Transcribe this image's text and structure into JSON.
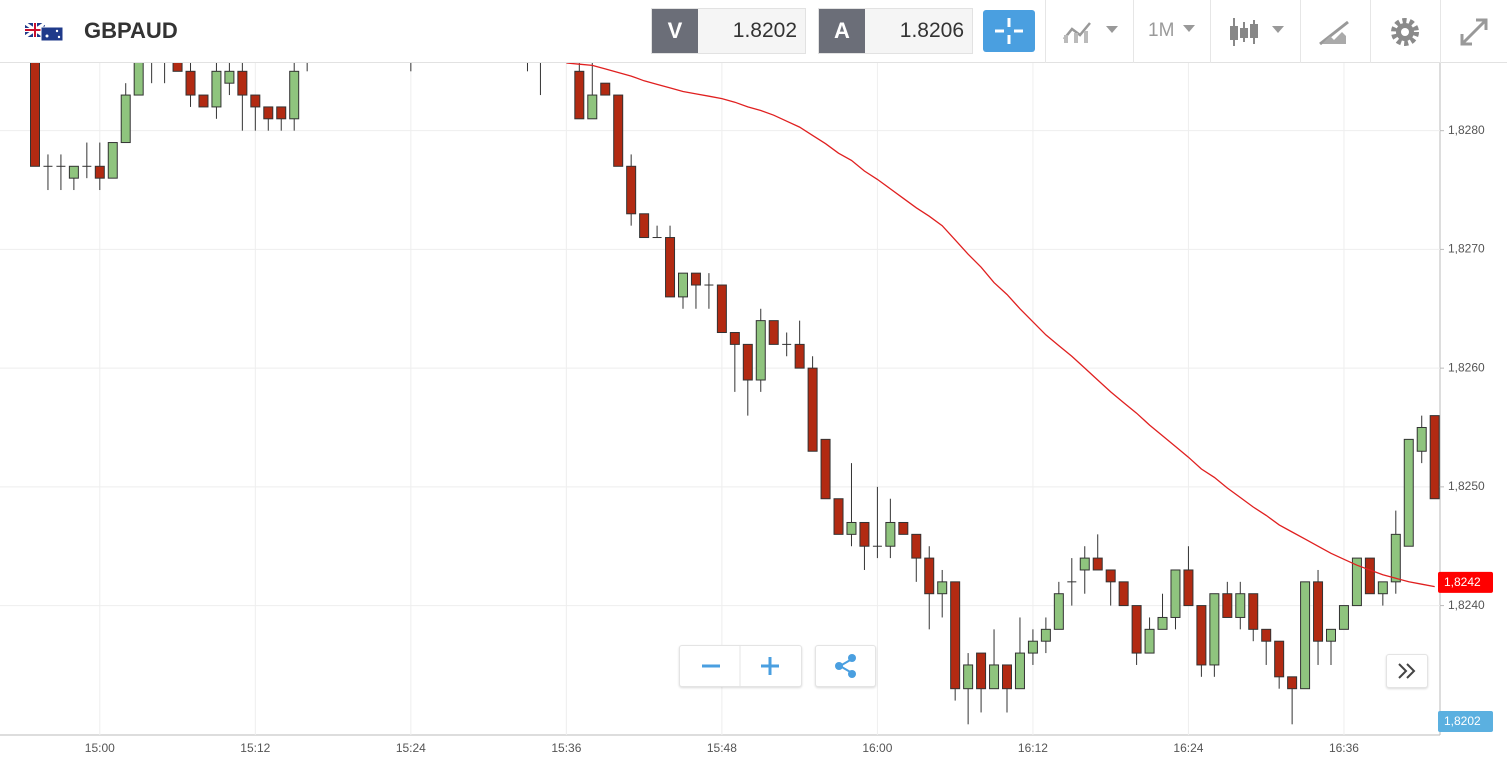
{
  "header": {
    "symbol": "GBPAUD",
    "sell_label": "V",
    "sell_price": "1.8202",
    "buy_label": "A",
    "buy_price": "1.8206",
    "timeframe": "1M"
  },
  "chart_data": {
    "type": "candlestick",
    "categories": [
      null,
      null,
      null,
      null,
      null,
      "15:00",
      null,
      null,
      null,
      null,
      null,
      null,
      null,
      null,
      null,
      null,
      null,
      "15:12",
      null,
      null,
      null,
      null,
      null,
      null,
      null,
      null,
      null,
      null,
      null,
      "15:24",
      null,
      null,
      null,
      null,
      null,
      null,
      null,
      null,
      null,
      null,
      null,
      "15:36",
      null,
      null,
      null,
      null,
      null,
      null,
      null,
      null,
      null,
      null,
      null,
      "15:48",
      null,
      null,
      null,
      null,
      null,
      null,
      null,
      null,
      null,
      null,
      null,
      "16:00",
      null,
      null,
      null,
      null,
      null,
      null,
      null,
      null,
      null,
      null,
      null,
      "16:12",
      null,
      null,
      null,
      null,
      null,
      null,
      null,
      null,
      null,
      null,
      null,
      "16:24",
      null,
      null,
      null,
      null,
      null,
      null,
      null,
      null,
      null,
      null,
      null,
      "16:36",
      null,
      null,
      null,
      null,
      null,
      null,
      null
    ],
    "open": [
      1.8286,
      1.8277,
      1.8277,
      1.8276,
      1.8277,
      1.8277,
      1.8276,
      1.8279,
      1.8283,
      1.8288,
      1.8288,
      1.8288,
      1.8285,
      1.8283,
      1.8282,
      1.8284,
      1.8285,
      1.8283,
      1.8282,
      1.8282,
      1.8281,
      1.8287,
      null,
      null,
      null,
      null,
      null,
      null,
      null,
      1.8287,
      null,
      null,
      null,
      null,
      null,
      null,
      null,
      null,
      1.8287,
      1.8287,
      null,
      null,
      1.8285,
      1.8281,
      1.8284,
      1.8283,
      1.8277,
      1.8273,
      1.8271,
      1.8271,
      1.8266,
      1.8268,
      1.8267,
      1.8267,
      1.8263,
      1.8262,
      1.8259,
      1.8264,
      1.8262,
      1.8262,
      1.826,
      1.8254,
      1.8249,
      1.8246,
      1.8247,
      1.8245,
      1.8245,
      1.8247,
      1.8246,
      1.8244,
      1.8241,
      1.8242,
      1.8233,
      1.8236,
      1.8233,
      1.8235,
      1.8233,
      1.8236,
      1.8237,
      1.8238,
      1.8242,
      1.8243,
      1.8244,
      1.8243,
      1.8242,
      1.824,
      1.8236,
      1.8238,
      1.8239,
      1.8243,
      1.824,
      1.8235,
      1.8241,
      1.8239,
      1.8241,
      1.8238,
      1.8237,
      1.8234,
      1.8233,
      1.8242,
      1.8237,
      1.8238,
      1.824,
      1.8244,
      1.8241,
      1.8242,
      1.8245,
      1.8253,
      1.8256
    ],
    "high": [
      1.8287,
      1.8278,
      1.8278,
      1.8277,
      1.8279,
      1.8279,
      1.8279,
      1.8284,
      1.8288,
      1.8289,
      1.8289,
      1.8289,
      1.8286,
      1.8283,
      1.8286,
      1.8286,
      1.8286,
      1.8283,
      1.8282,
      1.8282,
      1.8286,
      1.8289,
      null,
      null,
      null,
      null,
      null,
      null,
      null,
      1.8289,
      null,
      null,
      null,
      null,
      null,
      null,
      null,
      null,
      1.8289,
      1.8289,
      null,
      null,
      1.8287,
      1.8286,
      1.8284,
      1.8283,
      1.8278,
      1.8273,
      1.8272,
      1.8272,
      1.8268,
      1.8268,
      1.8268,
      1.8267,
      1.8263,
      1.8262,
      1.8265,
      1.8264,
      1.8263,
      1.8264,
      1.8261,
      1.8254,
      1.8249,
      1.8252,
      1.8247,
      1.825,
      1.8249,
      1.8247,
      1.8246,
      1.8245,
      1.8243,
      1.8242,
      1.8236,
      1.8236,
      1.8238,
      1.8235,
      1.8239,
      1.8238,
      1.8239,
      1.8242,
      1.8244,
      1.8245,
      1.8246,
      1.8243,
      1.8242,
      1.824,
      1.8239,
      1.8241,
      1.8243,
      1.8245,
      1.824,
      1.8241,
      1.8242,
      1.8242,
      1.8241,
      1.8238,
      1.8237,
      1.8234,
      1.8242,
      1.8243,
      1.8238,
      1.824,
      1.8244,
      1.8244,
      1.8242,
      1.8248,
      1.8254,
      1.8256,
      1.8256
    ],
    "low": [
      1.8277,
      1.8275,
      1.8275,
      1.8275,
      1.8276,
      1.8275,
      1.8276,
      1.8279,
      1.8283,
      1.8284,
      1.8284,
      1.8285,
      1.8282,
      1.8282,
      1.8281,
      1.8283,
      1.828,
      1.828,
      1.828,
      1.828,
      1.828,
      1.8285,
      null,
      null,
      null,
      null,
      null,
      null,
      null,
      1.8285,
      null,
      null,
      null,
      null,
      null,
      null,
      null,
      null,
      1.8285,
      1.8283,
      null,
      null,
      1.8281,
      1.8281,
      1.8283,
      1.8277,
      1.8272,
      1.8271,
      1.8271,
      1.8266,
      1.8265,
      1.8265,
      1.8265,
      1.8263,
      1.8258,
      1.8256,
      1.8258,
      1.8262,
      1.8261,
      1.826,
      1.8253,
      1.8249,
      1.8246,
      1.8245,
      1.8243,
      1.8244,
      1.8244,
      1.8246,
      1.8242,
      1.8238,
      1.8239,
      1.8232,
      1.823,
      1.8231,
      1.8233,
      1.8231,
      1.8233,
      1.8235,
      1.8236,
      1.8238,
      1.824,
      1.8241,
      1.8243,
      1.824,
      1.824,
      1.8235,
      1.8236,
      1.8238,
      1.8238,
      1.824,
      1.8234,
      1.8234,
      1.8239,
      1.8238,
      1.8237,
      1.8235,
      1.8233,
      1.823,
      1.8233,
      1.8235,
      1.8235,
      1.8238,
      1.824,
      1.8241,
      1.824,
      1.8241,
      1.8245,
      1.8252,
      1.8249
    ],
    "close": [
      1.8277,
      1.8277,
      1.8277,
      1.8277,
      1.8277,
      1.8276,
      1.8279,
      1.8283,
      1.8287,
      1.8288,
      1.8289,
      1.8285,
      1.8283,
      1.8282,
      1.8285,
      1.8285,
      1.8283,
      1.8282,
      1.8281,
      1.8281,
      1.8285,
      1.8288,
      null,
      null,
      null,
      null,
      null,
      null,
      null,
      1.8288,
      null,
      null,
      null,
      null,
      null,
      null,
      null,
      null,
      1.8288,
      1.8288,
      null,
      null,
      1.8281,
      1.8283,
      1.8283,
      1.8277,
      1.8273,
      1.8271,
      1.8271,
      1.8266,
      1.8268,
      1.8267,
      1.8267,
      1.8263,
      1.8262,
      1.8259,
      1.8264,
      1.8262,
      1.8262,
      1.826,
      1.8253,
      1.8249,
      1.8246,
      1.8247,
      1.8245,
      1.8245,
      1.8247,
      1.8246,
      1.8244,
      1.8241,
      1.8242,
      1.8233,
      1.8235,
      1.8233,
      1.8235,
      1.8233,
      1.8236,
      1.8237,
      1.8238,
      1.8241,
      1.8242,
      1.8244,
      1.8243,
      1.8242,
      1.824,
      1.8236,
      1.8238,
      1.8239,
      1.8243,
      1.824,
      1.8235,
      1.8241,
      1.8239,
      1.8241,
      1.8238,
      1.8237,
      1.8234,
      1.8233,
      1.8242,
      1.8237,
      1.8238,
      1.824,
      1.8244,
      1.8241,
      1.8242,
      1.8246,
      1.8254,
      1.8255,
      1.8249
    ],
    "up_color": "#8fc47e",
    "down_color": "#b22a12",
    "ma": {
      "color": "#e02020",
      "values": [
        null,
        null,
        null,
        null,
        null,
        null,
        null,
        null,
        null,
        null,
        null,
        null,
        null,
        null,
        null,
        null,
        null,
        null,
        null,
        null,
        null,
        null,
        null,
        null,
        null,
        null,
        null,
        null,
        null,
        null,
        null,
        null,
        null,
        null,
        null,
        null,
        null,
        null,
        null,
        null,
        null,
        1.82857,
        1.82856,
        1.82855,
        1.82852,
        1.82849,
        1.82846,
        1.82842,
        1.82839,
        1.82836,
        1.82833,
        1.82831,
        1.82829,
        1.82827,
        1.82824,
        1.8282,
        1.82817,
        1.82813,
        1.82808,
        1.82803,
        1.82796,
        1.82789,
        1.82781,
        1.82775,
        1.82766,
        1.82759,
        1.82751,
        1.82743,
        1.82735,
        1.82728,
        1.8272,
        1.82708,
        1.82696,
        1.82685,
        1.82672,
        1.82662,
        1.8265,
        1.82639,
        1.82628,
        1.82619,
        1.8261,
        1.826,
        1.8259,
        1.8258,
        1.82571,
        1.82562,
        1.82552,
        1.82543,
        1.82534,
        1.82525,
        1.82515,
        1.82508,
        1.82499,
        1.82491,
        1.82483,
        1.82476,
        1.82468,
        1.82462,
        1.82456,
        1.8245,
        1.82444,
        1.82439,
        1.82434,
        1.8243,
        1.82426,
        1.82423,
        1.8242,
        1.82418,
        1.82416
      ]
    },
    "ylim": [
      1.82291,
      1.82857
    ],
    "yticks": [
      {
        "value": 1.824,
        "label": "1,8240"
      },
      {
        "value": 1.825,
        "label": "1,8250"
      },
      {
        "value": 1.826,
        "label": "1,8260"
      },
      {
        "value": 1.827,
        "label": "1,8270"
      },
      {
        "value": 1.828,
        "label": "1,8280"
      }
    ],
    "grid": true,
    "price_markers": [
      {
        "value": 1.8242,
        "label": "1,8242",
        "color": "#ff0000"
      },
      {
        "value": 1.8202,
        "label": "1,8202",
        "color": "#5bb0e0"
      }
    ]
  }
}
